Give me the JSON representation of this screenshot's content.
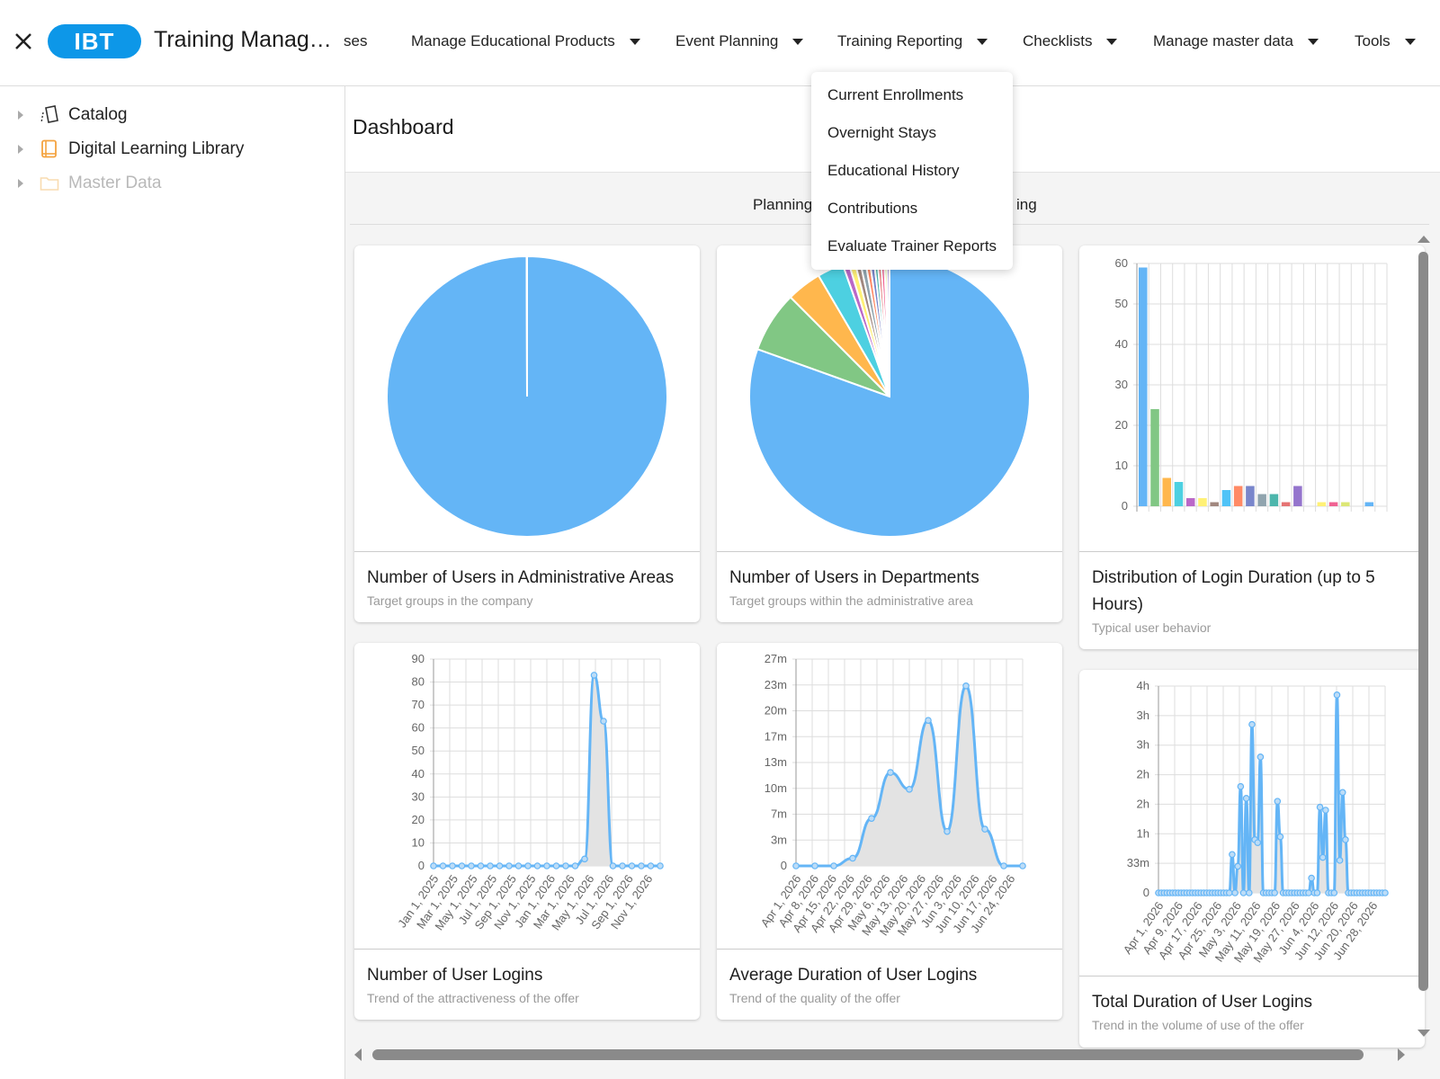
{
  "header": {
    "logo": "IBT",
    "title": "Training Manage...",
    "menu_fragment": "ses",
    "menus": [
      "Manage Educational Products",
      "Event Planning",
      "Training Reporting",
      "Checklists",
      "Manage master data",
      "Tools"
    ]
  },
  "dropdown": {
    "items": [
      "Current Enrollments",
      "Overnight Stays",
      "Educational History",
      "Contributions",
      "Evaluate Trainer Reports"
    ]
  },
  "sidebar": {
    "items": [
      {
        "label": "Catalog",
        "icon": "catalog-icon",
        "enabled": true
      },
      {
        "label": "Digital Learning Library",
        "icon": "book-icon",
        "enabled": true
      },
      {
        "label": "Master Data",
        "icon": "folder-icon",
        "enabled": false
      }
    ]
  },
  "main": {
    "title": "Dashboard",
    "tabs": [
      "Planning",
      "ing"
    ]
  },
  "colors": {
    "accent": "#0d97e8",
    "chart_blue": "#64b5f6",
    "area_fill": "#e3e3e3"
  },
  "cards": [
    {
      "title": "Number of Users in Administrative Areas",
      "subtitle": "Target groups in the company"
    },
    {
      "title": "Number of Users in Departments",
      "subtitle": "Target groups within the administrative area"
    },
    {
      "title": "Distribution of Login Duration (up to 5 Hours)",
      "subtitle": "Typical user behavior"
    },
    {
      "title": "Number of User Logins",
      "subtitle": "Trend of the attractiveness of the offer"
    },
    {
      "title": "Average Duration of User Logins",
      "subtitle": "Trend of the quality of the offer"
    },
    {
      "title": "Total Duration of User Logins",
      "subtitle": "Trend in the volume of use of the offer"
    }
  ],
  "chart_data": [
    {
      "type": "pie",
      "title": "Number of Users in Administrative Areas",
      "values": [
        1000,
        0.5
      ],
      "colors": [
        "#64b5f6",
        "#ffffff"
      ]
    },
    {
      "type": "pie",
      "title": "Number of Users in Departments",
      "values": [
        80,
        7,
        4,
        3,
        0.7,
        0.7,
        0.6,
        0.6,
        0.5,
        0.5,
        0.4,
        0.4,
        0.4,
        0.3,
        0.3
      ],
      "colors": [
        "#64b5f6",
        "#81c784",
        "#ffb74d",
        "#4dd0e1",
        "#ba68c8",
        "#fff176",
        "#a1887f",
        "#90a4ae",
        "#ff8a65",
        "#7986cb",
        "#4db6ac",
        "#e57373",
        "#f06292",
        "#dce775",
        "#9575cd"
      ]
    },
    {
      "type": "bar",
      "title": "Distribution of Login Duration (up to 5 Hours)",
      "yticks": [
        "0",
        "10",
        "20",
        "30",
        "40",
        "50",
        "60"
      ],
      "ylim": [
        0,
        60
      ],
      "values": [
        59,
        24,
        7,
        6,
        2,
        2,
        1,
        4,
        5,
        5,
        3,
        3,
        1,
        5,
        0,
        1,
        1,
        1,
        0,
        1
      ],
      "colors": [
        "#64b5f6",
        "#81c784",
        "#ffb74d",
        "#4dd0e1",
        "#ba68c8",
        "#fff176",
        "#a1887f",
        "#4fc3f7",
        "#ff8a65",
        "#7986cb",
        "#90a4ae",
        "#4db6ac",
        "#e57373",
        "#9575cd",
        "#cccccc",
        "#fff176",
        "#f06292",
        "#dce775",
        "#cccccc",
        "#64b5f6"
      ]
    },
    {
      "type": "area",
      "title": "Number of User Logins",
      "yticks": [
        "0",
        "10",
        "20",
        "30",
        "40",
        "50",
        "60",
        "70",
        "80",
        "90"
      ],
      "ylim": [
        0,
        90
      ],
      "xticks": [
        "Jan 1, 2025",
        "Mar 1, 2025",
        "May 1, 2025",
        "Jul 1, 2025",
        "Sep 1, 2025",
        "Nov 1, 2025",
        "Jan 1, 2026",
        "Mar 1, 2026",
        "May 1, 2026",
        "Jul 1, 2026",
        "Sep 1, 2026",
        "Nov 1, 2026"
      ],
      "values": [
        0,
        0,
        0,
        0,
        0,
        0,
        0,
        0,
        0,
        0,
        0,
        0,
        0,
        0,
        0,
        0,
        3,
        83,
        63,
        0,
        0,
        0,
        0,
        0,
        0
      ]
    },
    {
      "type": "area",
      "title": "Average Duration of User Logins",
      "yticks": [
        "0",
        "3m",
        "7m",
        "10m",
        "13m",
        "17m",
        "20m",
        "23m",
        "27m"
      ],
      "ylim": [
        0,
        27
      ],
      "xticks": [
        "Apr 1, 2026",
        "Apr 8, 2026",
        "Apr 15, 2026",
        "Apr 22, 2026",
        "Apr 29, 2026",
        "May 6, 2026",
        "May 13, 2026",
        "May 20, 2026",
        "May 27, 2026",
        "Jun 3, 2026",
        "Jun 10, 2026",
        "Jun 17, 2026",
        "Jun 24, 2026"
      ],
      "values": [
        0,
        0,
        0,
        1,
        6.2,
        12.2,
        10,
        19,
        4.5,
        23.5,
        4.8,
        0,
        0
      ]
    },
    {
      "type": "area",
      "title": "Total Duration of User Logins",
      "yticks": [
        "0",
        "33m",
        "1h",
        "2h",
        "2h",
        "3h",
        "3h",
        "4h"
      ],
      "ylim": [
        0,
        7
      ],
      "xticks": [
        "Apr 1, 2026",
        "Apr 9, 2026",
        "Apr 17, 2026",
        "Apr 25, 2026",
        "May 3, 2026",
        "May 11, 2026",
        "May 19, 2026",
        "May 27, 2026",
        "Jun 4, 2026",
        "Jun 12, 2026",
        "Jun 20, 2026",
        "Jun 28, 2026"
      ],
      "values": [
        0,
        0,
        0,
        0,
        0,
        0,
        0,
        0,
        0,
        0,
        0,
        0,
        0,
        0,
        0,
        0,
        0,
        0,
        0,
        0,
        0,
        0,
        0,
        0,
        0,
        0,
        1.3,
        0,
        0.9,
        3.6,
        0,
        3.2,
        0,
        5.7,
        1.8,
        1.7,
        4.6,
        0,
        0,
        0,
        0,
        0,
        3.1,
        1.9,
        0,
        0,
        0,
        0,
        0,
        0,
        0,
        0,
        0,
        0,
        0.5,
        0,
        0,
        2.9,
        1.2,
        2.8,
        0,
        0,
        0,
        6.7,
        1.1,
        3.4,
        1.8,
        0,
        0,
        0,
        0,
        0,
        0,
        0,
        0,
        0,
        0,
        0,
        0,
        0,
        0
      ]
    }
  ]
}
